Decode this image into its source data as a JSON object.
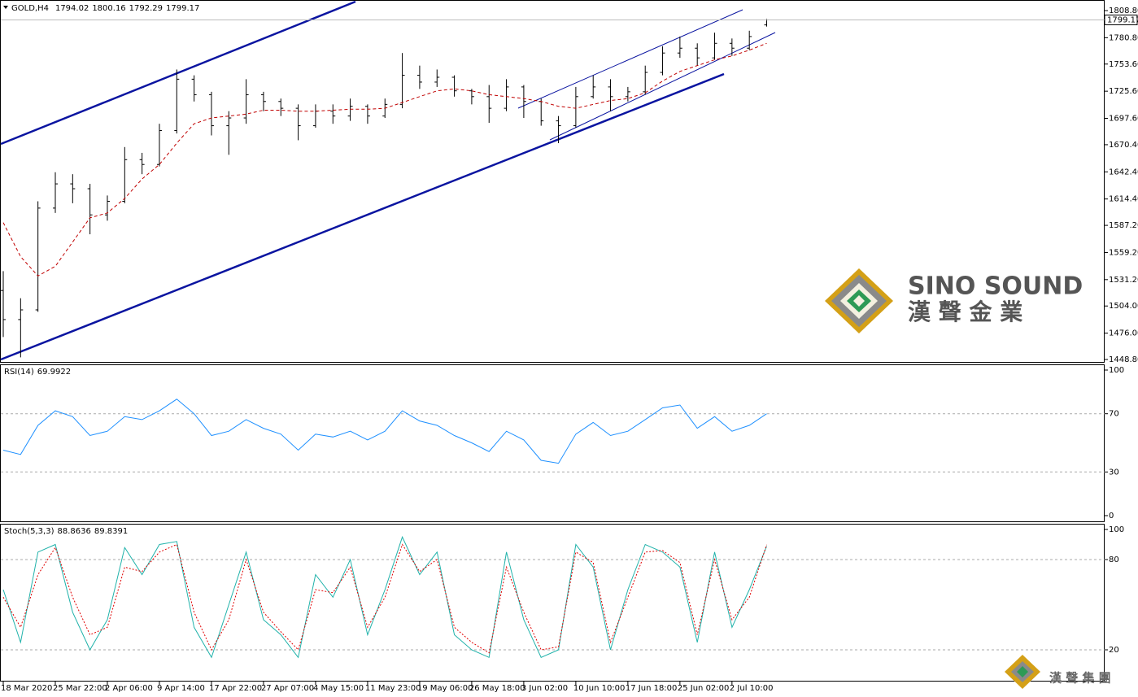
{
  "chart_data": [
    {
      "type": "ohlc",
      "symbol": "GOLD,H4",
      "color": "#000000",
      "ma_color": "#c00000",
      "categories": [
        "18 Mar 2020",
        null,
        null,
        "25 Mar 22:00",
        null,
        null,
        "2 Apr 06:00",
        null,
        null,
        "9 Apr 14:00",
        null,
        null,
        "17 Apr 22:00",
        null,
        null,
        "27 Apr 07:00",
        null,
        null,
        "4 May 15:00",
        null,
        null,
        "11 May 23:00",
        null,
        null,
        "19 May 06:00",
        null,
        null,
        "26 May 18:00",
        null,
        null,
        "3 Jun 02:00",
        null,
        null,
        "10 Jun 10:00",
        null,
        null,
        "17 Jun 18:00",
        null,
        null,
        "25 Jun 02:00",
        null,
        null,
        "2 Jul 10:00",
        null,
        null
      ],
      "open": [
        1520,
        1490,
        1500,
        1605,
        1630,
        1625,
        1598,
        1612,
        1655,
        1650,
        1685,
        1738,
        1722,
        1690,
        1698,
        1722,
        1715,
        1708,
        1690,
        1705,
        1700,
        1710,
        1700,
        1712,
        1742,
        1735,
        1740,
        1726,
        1720,
        1708,
        1730,
        1715,
        1695,
        1690,
        1720,
        1730,
        1720,
        1725,
        1745,
        1765,
        1770,
        1760,
        1775,
        1770,
        1794.02
      ],
      "high": [
        1540,
        1512,
        1612,
        1642,
        1640,
        1630,
        1618,
        1668,
        1662,
        1692,
        1748,
        1742,
        1725,
        1705,
        1738,
        1725,
        1718,
        1712,
        1712,
        1712,
        1718,
        1712,
        1718,
        1765,
        1752,
        1748,
        1742,
        1728,
        1732,
        1738,
        1732,
        1718,
        1700,
        1730,
        1742,
        1738,
        1730,
        1752,
        1772,
        1782,
        1775,
        1786,
        1780,
        1788,
        1800.16
      ],
      "low": [
        1472,
        1451,
        1498,
        1600,
        1610,
        1578,
        1592,
        1610,
        1640,
        1648,
        1682,
        1715,
        1680,
        1660,
        1692,
        1705,
        1700,
        1675,
        1688,
        1692,
        1695,
        1692,
        1698,
        1708,
        1728,
        1730,
        1720,
        1712,
        1693,
        1705,
        1698,
        1690,
        1672,
        1688,
        1718,
        1705,
        1715,
        1722,
        1742,
        1760,
        1752,
        1758,
        1762,
        1768,
        1792.29
      ],
      "close": [
        1490,
        1500,
        1605,
        1630,
        1625,
        1598,
        1612,
        1655,
        1650,
        1685,
        1738,
        1722,
        1690,
        1698,
        1722,
        1715,
        1708,
        1690,
        1705,
        1700,
        1710,
        1700,
        1712,
        1742,
        1735,
        1740,
        1726,
        1720,
        1708,
        1730,
        1715,
        1695,
        1690,
        1720,
        1730,
        1720,
        1725,
        1745,
        1765,
        1770,
        1760,
        1775,
        1770,
        1782,
        1799.17
      ],
      "ma": [
        1590,
        1555,
        1535,
        1545,
        1570,
        1595,
        1600,
        1615,
        1635,
        1650,
        1672,
        1692,
        1698,
        1700,
        1702,
        1706,
        1706,
        1705,
        1705,
        1706,
        1707,
        1707,
        1708,
        1714,
        1720,
        1726,
        1728,
        1726,
        1722,
        1720,
        1718,
        1715,
        1710,
        1708,
        1712,
        1716,
        1718,
        1724,
        1736,
        1746,
        1752,
        1758,
        1762,
        1768,
        1775
      ],
      "ylim": [
        1446.3,
        1819.7
      ],
      "yticks": [
        {
          "value": 1808.8,
          "label": "1808.80"
        },
        {
          "value": 1780.8,
          "label": "1780.80"
        },
        {
          "value": 1753.6,
          "label": "1753.60"
        },
        {
          "value": 1725.6,
          "label": "1725.60"
        },
        {
          "value": 1697.6,
          "label": "1697.60"
        },
        {
          "value": 1670.4,
          "label": "1670.40"
        },
        {
          "value": 1642.4,
          "label": "1642.40"
        },
        {
          "value": 1614.4,
          "label": "1614.40"
        },
        {
          "value": 1587.2,
          "label": "1587.20"
        },
        {
          "value": 1559.2,
          "label": "1559.20"
        },
        {
          "value": 1531.2,
          "label": "1531.20"
        },
        {
          "value": 1504,
          "label": "1504.00"
        },
        {
          "value": 1476,
          "label": "1476.00"
        },
        {
          "value": 1448.8,
          "label": "1448.80"
        }
      ]
    },
    {
      "type": "line",
      "name": "RSI(14)",
      "color": "#1e90ff",
      "values": [
        45,
        42,
        62,
        72,
        68,
        55,
        58,
        68,
        66,
        72,
        80,
        70,
        55,
        58,
        66,
        60,
        56,
        45,
        56,
        54,
        58,
        52,
        58,
        72,
        65,
        62,
        55,
        50,
        44,
        58,
        52,
        38,
        36,
        56,
        64,
        55,
        58,
        66,
        74,
        76,
        60,
        68,
        58,
        62,
        69.9922
      ],
      "ylim": [
        0,
        100
      ],
      "yticks": [
        100,
        70,
        30,
        0
      ]
    },
    {
      "type": "line",
      "name": "Stoch(5,3,3)",
      "color": "#20b2aa",
      "signal_color": "#e00000",
      "values": [
        60,
        25,
        85,
        90,
        45,
        20,
        40,
        88,
        70,
        90,
        92,
        35,
        15,
        50,
        85,
        40,
        30,
        15,
        70,
        55,
        80,
        30,
        60,
        95,
        70,
        85,
        30,
        20,
        15,
        85,
        40,
        15,
        20,
        90,
        75,
        20,
        60,
        90,
        85,
        75,
        25,
        85,
        35,
        60,
        88.8636
      ],
      "signal": [
        55,
        35,
        70,
        88,
        55,
        30,
        35,
        75,
        72,
        85,
        90,
        45,
        20,
        40,
        80,
        45,
        32,
        20,
        60,
        58,
        75,
        35,
        55,
        90,
        72,
        80,
        35,
        25,
        18,
        75,
        45,
        20,
        22,
        85,
        78,
        25,
        55,
        85,
        86,
        78,
        30,
        80,
        40,
        55,
        89.8391
      ],
      "ylim": [
        0,
        100
      ],
      "yticks": [
        100,
        80,
        20
      ]
    }
  ],
  "watermark": {
    "brand": "SINO SOUND",
    "chinese": "漢 聲 金 業",
    "footer": "漢 聲 集 團"
  }
}
